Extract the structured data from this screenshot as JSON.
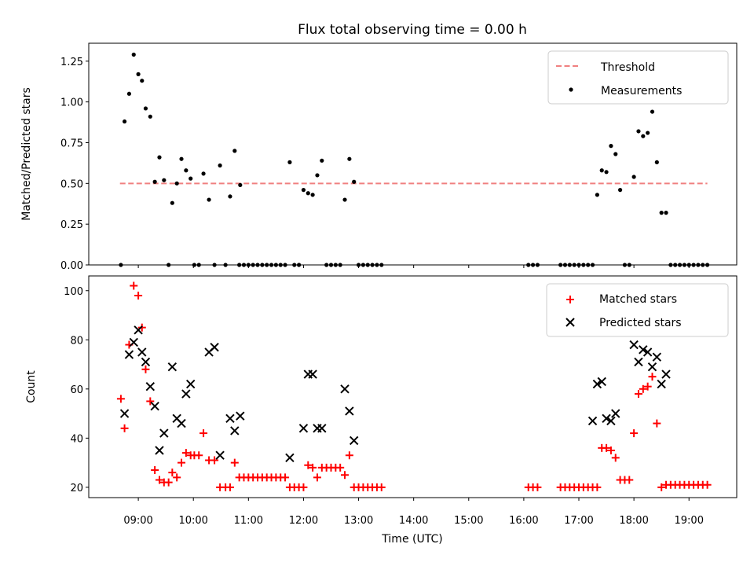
{
  "title": "Flux total observing time = 0.00 h",
  "colors": {
    "threshold": "#f08080",
    "measurements": "#000000",
    "matched": "#ff0000",
    "predicted": "#000000"
  },
  "chart_data": [
    {
      "type": "scatter",
      "ylabel": "Matched/Predicted stars",
      "ylim": [
        0,
        1.36
      ],
      "yticks": [
        "0.00",
        "0.25",
        "0.50",
        "0.75",
        "1.00",
        "1.25"
      ],
      "legend": {
        "placement": "top-right",
        "entries": [
          "Threshold",
          "Measurements"
        ]
      },
      "threshold": {
        "name": "Threshold",
        "value": 0.5,
        "x_range": [
          "08:40",
          "19:20"
        ]
      },
      "series": [
        {
          "name": "Measurements",
          "points": [
            [
              "08:41",
              0.0
            ],
            [
              "08:45",
              0.88
            ],
            [
              "08:50",
              1.05
            ],
            [
              "08:55",
              1.29
            ],
            [
              "09:00",
              1.17
            ],
            [
              "09:04",
              1.13
            ],
            [
              "09:08",
              0.96
            ],
            [
              "09:13",
              0.91
            ],
            [
              "09:18",
              0.51
            ],
            [
              "09:23",
              0.66
            ],
            [
              "09:28",
              0.52
            ],
            [
              "09:33",
              0.0
            ],
            [
              "09:37",
              0.38
            ],
            [
              "09:42",
              0.5
            ],
            [
              "09:47",
              0.65
            ],
            [
              "09:52",
              0.58
            ],
            [
              "09:57",
              0.53
            ],
            [
              "10:01",
              0.0
            ],
            [
              "10:06",
              0.0
            ],
            [
              "10:11",
              0.56
            ],
            [
              "10:17",
              0.4
            ],
            [
              "10:23",
              0.0
            ],
            [
              "10:29",
              0.61
            ],
            [
              "10:35",
              0.0
            ],
            [
              "10:40",
              0.42
            ],
            [
              "10:45",
              0.7
            ],
            [
              "10:50",
              0.0
            ],
            [
              "10:51",
              0.49
            ],
            [
              "10:55",
              0.0
            ],
            [
              "11:00",
              0.0
            ],
            [
              "11:05",
              0.0
            ],
            [
              "11:10",
              0.0
            ],
            [
              "11:15",
              0.0
            ],
            [
              "11:20",
              0.0
            ],
            [
              "11:25",
              0.0
            ],
            [
              "11:30",
              0.0
            ],
            [
              "11:35",
              0.0
            ],
            [
              "11:40",
              0.0
            ],
            [
              "11:45",
              0.63
            ],
            [
              "11:50",
              0.0
            ],
            [
              "11:55",
              0.0
            ],
            [
              "12:00",
              0.46
            ],
            [
              "12:05",
              0.44
            ],
            [
              "12:10",
              0.43
            ],
            [
              "12:15",
              0.55
            ],
            [
              "12:20",
              0.64
            ],
            [
              "12:25",
              0.0
            ],
            [
              "12:30",
              0.0
            ],
            [
              "12:35",
              0.0
            ],
            [
              "12:40",
              0.0
            ],
            [
              "12:45",
              0.4
            ],
            [
              "12:50",
              0.65
            ],
            [
              "12:55",
              0.51
            ],
            [
              "13:00",
              0.0
            ],
            [
              "13:05",
              0.0
            ],
            [
              "13:10",
              0.0
            ],
            [
              "13:15",
              0.0
            ],
            [
              "13:20",
              0.0
            ],
            [
              "13:25",
              0.0
            ],
            [
              "16:05",
              0.0
            ],
            [
              "16:10",
              0.0
            ],
            [
              "16:15",
              0.0
            ],
            [
              "16:40",
              0.0
            ],
            [
              "16:45",
              0.0
            ],
            [
              "16:50",
              0.0
            ],
            [
              "16:55",
              0.0
            ],
            [
              "17:00",
              0.0
            ],
            [
              "17:05",
              0.0
            ],
            [
              "17:10",
              0.0
            ],
            [
              "17:15",
              0.0
            ],
            [
              "17:20",
              0.43
            ],
            [
              "17:25",
              0.58
            ],
            [
              "17:30",
              0.57
            ],
            [
              "17:35",
              0.73
            ],
            [
              "17:40",
              0.68
            ],
            [
              "17:45",
              0.46
            ],
            [
              "17:50",
              0.0
            ],
            [
              "17:55",
              0.0
            ],
            [
              "18:00",
              0.54
            ],
            [
              "18:05",
              0.82
            ],
            [
              "18:10",
              0.79
            ],
            [
              "18:15",
              0.81
            ],
            [
              "18:20",
              0.94
            ],
            [
              "18:25",
              0.63
            ],
            [
              "18:30",
              0.32
            ],
            [
              "18:35",
              0.32
            ],
            [
              "18:40",
              0.0
            ],
            [
              "18:45",
              0.0
            ],
            [
              "18:50",
              0.0
            ],
            [
              "18:55",
              0.0
            ],
            [
              "19:00",
              0.0
            ],
            [
              "19:05",
              0.0
            ],
            [
              "19:10",
              0.0
            ],
            [
              "19:15",
              0.0
            ],
            [
              "19:20",
              0.0
            ]
          ]
        }
      ]
    },
    {
      "type": "scatter",
      "xlabel": "Time (UTC)",
      "ylabel": "Count",
      "ylim": [
        15.8,
        106
      ],
      "yticks": [
        "20",
        "40",
        "60",
        "80",
        "100"
      ],
      "xlim": [
        "08:06",
        "19:52"
      ],
      "xticks": [
        "09:00",
        "10:00",
        "11:00",
        "12:00",
        "13:00",
        "14:00",
        "15:00",
        "16:00",
        "17:00",
        "18:00",
        "19:00"
      ],
      "legend": {
        "placement": "top-right",
        "entries": [
          "Matched stars",
          "Predicted stars"
        ]
      },
      "series": [
        {
          "name": "Matched stars",
          "points": [
            [
              "08:41",
              56
            ],
            [
              "08:45",
              44
            ],
            [
              "08:50",
              78
            ],
            [
              "08:55",
              102
            ],
            [
              "09:00",
              98
            ],
            [
              "09:04",
              85
            ],
            [
              "09:08",
              68
            ],
            [
              "09:13",
              55
            ],
            [
              "09:18",
              27
            ],
            [
              "09:23",
              23
            ],
            [
              "09:28",
              22
            ],
            [
              "09:33",
              22
            ],
            [
              "09:37",
              26
            ],
            [
              "09:42",
              24
            ],
            [
              "09:47",
              30
            ],
            [
              "09:52",
              34
            ],
            [
              "09:57",
              33
            ],
            [
              "10:01",
              33
            ],
            [
              "10:06",
              33
            ],
            [
              "10:11",
              42
            ],
            [
              "10:17",
              31
            ],
            [
              "10:23",
              31
            ],
            [
              "10:29",
              20
            ],
            [
              "10:35",
              20
            ],
            [
              "10:40",
              20
            ],
            [
              "10:45",
              30
            ],
            [
              "10:50",
              24
            ],
            [
              "10:55",
              24
            ],
            [
              "11:00",
              24
            ],
            [
              "11:05",
              24
            ],
            [
              "11:10",
              24
            ],
            [
              "11:15",
              24
            ],
            [
              "11:20",
              24
            ],
            [
              "11:25",
              24
            ],
            [
              "11:30",
              24
            ],
            [
              "11:35",
              24
            ],
            [
              "11:40",
              24
            ],
            [
              "11:45",
              20
            ],
            [
              "11:50",
              20
            ],
            [
              "11:55",
              20
            ],
            [
              "12:00",
              20
            ],
            [
              "12:05",
              29
            ],
            [
              "12:10",
              28
            ],
            [
              "12:15",
              24
            ],
            [
              "12:20",
              28
            ],
            [
              "12:25",
              28
            ],
            [
              "12:30",
              28
            ],
            [
              "12:35",
              28
            ],
            [
              "12:40",
              28
            ],
            [
              "12:45",
              25
            ],
            [
              "12:50",
              33
            ],
            [
              "12:55",
              20
            ],
            [
              "13:00",
              20
            ],
            [
              "13:05",
              20
            ],
            [
              "13:10",
              20
            ],
            [
              "13:15",
              20
            ],
            [
              "13:20",
              20
            ],
            [
              "13:25",
              20
            ],
            [
              "16:05",
              20
            ],
            [
              "16:10",
              20
            ],
            [
              "16:15",
              20
            ],
            [
              "16:40",
              20
            ],
            [
              "16:45",
              20
            ],
            [
              "16:50",
              20
            ],
            [
              "16:55",
              20
            ],
            [
              "17:00",
              20
            ],
            [
              "17:05",
              20
            ],
            [
              "17:10",
              20
            ],
            [
              "17:15",
              20
            ],
            [
              "17:20",
              20
            ],
            [
              "17:25",
              36
            ],
            [
              "17:30",
              36
            ],
            [
              "17:35",
              35
            ],
            [
              "17:40",
              32
            ],
            [
              "17:45",
              23
            ],
            [
              "17:50",
              23
            ],
            [
              "17:55",
              23
            ],
            [
              "18:00",
              42
            ],
            [
              "18:05",
              58
            ],
            [
              "18:10",
              60
            ],
            [
              "18:15",
              61
            ],
            [
              "18:20",
              65
            ],
            [
              "18:25",
              46
            ],
            [
              "18:30",
              20
            ],
            [
              "18:35",
              21
            ],
            [
              "18:40",
              21
            ],
            [
              "18:45",
              21
            ],
            [
              "18:50",
              21
            ],
            [
              "18:55",
              21
            ],
            [
              "19:00",
              21
            ],
            [
              "19:05",
              21
            ],
            [
              "19:10",
              21
            ],
            [
              "19:15",
              21
            ],
            [
              "19:20",
              21
            ]
          ]
        },
        {
          "name": "Predicted stars",
          "points": [
            [
              "08:45",
              50
            ],
            [
              "08:50",
              74
            ],
            [
              "08:55",
              79
            ],
            [
              "09:00",
              84
            ],
            [
              "09:04",
              75
            ],
            [
              "09:08",
              71
            ],
            [
              "09:13",
              61
            ],
            [
              "09:18",
              53
            ],
            [
              "09:23",
              35
            ],
            [
              "09:28",
              42
            ],
            [
              "09:37",
              69
            ],
            [
              "09:42",
              48
            ],
            [
              "09:47",
              46
            ],
            [
              "09:52",
              58
            ],
            [
              "09:57",
              62
            ],
            [
              "10:17",
              75
            ],
            [
              "10:23",
              77
            ],
            [
              "10:29",
              33
            ],
            [
              "10:40",
              48
            ],
            [
              "10:45",
              43
            ],
            [
              "10:51",
              49
            ],
            [
              "11:45",
              32
            ],
            [
              "12:00",
              44
            ],
            [
              "12:05",
              66
            ],
            [
              "12:10",
              66
            ],
            [
              "12:15",
              44
            ],
            [
              "12:20",
              44
            ],
            [
              "12:45",
              60
            ],
            [
              "12:50",
              51
            ],
            [
              "12:55",
              39
            ],
            [
              "17:15",
              47
            ],
            [
              "17:20",
              62
            ],
            [
              "17:25",
              63
            ],
            [
              "17:30",
              48
            ],
            [
              "17:35",
              47
            ],
            [
              "17:40",
              50
            ],
            [
              "18:00",
              78
            ],
            [
              "18:05",
              71
            ],
            [
              "18:10",
              76
            ],
            [
              "18:15",
              75
            ],
            [
              "18:20",
              69
            ],
            [
              "18:25",
              73
            ],
            [
              "18:30",
              62
            ],
            [
              "18:35",
              66
            ]
          ]
        }
      ]
    }
  ]
}
